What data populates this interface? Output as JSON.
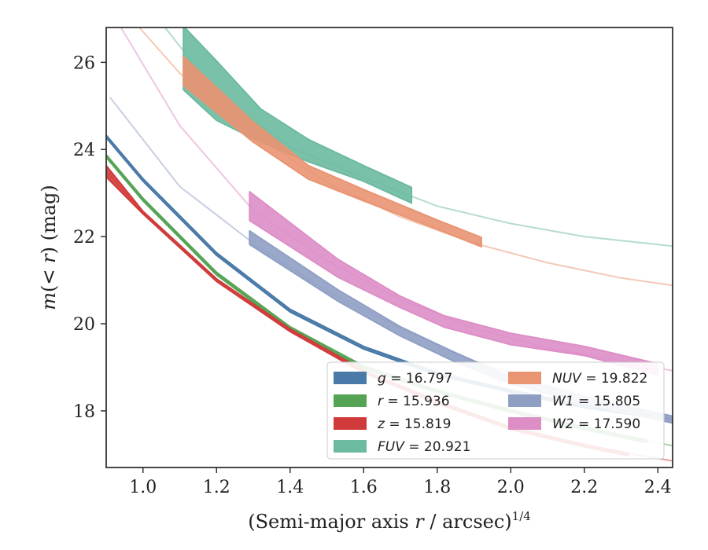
{
  "chart_data": {
    "type": "line",
    "title": "",
    "xlabel": "(Semi-major axis r / arcsec)^{1/4}",
    "xlabel_parts": {
      "main": "(Semi-major axis ",
      "var": "r",
      "rest": " / arcsec)",
      "sup": "1/4"
    },
    "ylabel": "m(<r) (mag)",
    "ylabel_parts": {
      "var": "m",
      "open": "(",
      "lt": "<",
      "r": "r",
      "close": ")",
      "unit": " (mag)"
    },
    "xlim": [
      0.9,
      2.44
    ],
    "ylim": [
      26.8,
      16.7
    ],
    "y_inverted": true,
    "grid": false,
    "x_ticks": [
      1.0,
      1.2,
      1.4,
      1.6,
      1.8,
      2.0,
      2.2,
      2.4
    ],
    "x_tick_labels": [
      "1.0",
      "1.2",
      "1.4",
      "1.6",
      "1.8",
      "2.0",
      "2.2",
      "2.4"
    ],
    "y_ticks": [
      18,
      20,
      22,
      24,
      26
    ],
    "y_tick_labels": [
      "18",
      "20",
      "22",
      "24",
      "26"
    ],
    "legend": {
      "placement": "lower-right",
      "columns": 2
    },
    "colors": {
      "g": "#4a7aa8",
      "r": "#55a455",
      "z": "#d03a3a",
      "FUV": "#6cbaa0",
      "NUV": "#e99472",
      "W1": "#8f9fc4",
      "W2": "#dd8ec6"
    },
    "series": [
      {
        "key": "g",
        "name": "g = 16.797",
        "legend_var": "g",
        "legend_value": "16.797",
        "model": [
          [
            0.9,
            24.3
          ],
          [
            1.0,
            23.3
          ],
          [
            1.2,
            21.6
          ],
          [
            1.4,
            20.3
          ],
          [
            1.6,
            19.45
          ],
          [
            1.8,
            18.85
          ],
          [
            2.0,
            18.45
          ],
          [
            2.2,
            18.1
          ],
          [
            2.44,
            17.8
          ]
        ],
        "data": [
          [
            0.9,
            24.3,
            24.3
          ],
          [
            1.0,
            23.3,
            23.3
          ],
          [
            1.2,
            21.6,
            21.6
          ],
          [
            1.4,
            20.3,
            20.3
          ],
          [
            1.6,
            19.45,
            19.45
          ],
          [
            1.8,
            18.85,
            18.85
          ],
          [
            2.0,
            18.45,
            18.45
          ],
          [
            2.2,
            18.1,
            18.1
          ],
          [
            2.38,
            17.88,
            17.88
          ]
        ]
      },
      {
        "key": "r",
        "name": "r = 15.936",
        "legend_var": "r",
        "legend_value": "15.936",
        "model": [
          [
            0.9,
            23.85
          ],
          [
            1.0,
            22.85
          ],
          [
            1.2,
            21.15
          ],
          [
            1.4,
            19.9
          ],
          [
            1.6,
            19.0
          ],
          [
            1.8,
            18.45
          ],
          [
            2.0,
            18.0
          ],
          [
            2.2,
            17.6
          ],
          [
            2.44,
            17.2
          ]
        ],
        "data": [
          [
            0.9,
            23.85,
            23.85
          ],
          [
            1.0,
            22.85,
            22.85
          ],
          [
            1.2,
            21.15,
            21.15
          ],
          [
            1.4,
            19.9,
            19.9
          ],
          [
            1.6,
            19.0,
            19.0
          ],
          [
            1.8,
            18.45,
            18.45
          ],
          [
            2.0,
            18.0,
            18.0
          ],
          [
            2.2,
            17.6,
            17.6
          ],
          [
            2.37,
            17.3,
            17.3
          ]
        ]
      },
      {
        "key": "z",
        "name": "z = 15.819",
        "legend_var": "z",
        "legend_value": "15.819",
        "model": [
          [
            0.9,
            23.5
          ],
          [
            1.0,
            22.55
          ],
          [
            1.2,
            21.0
          ],
          [
            1.4,
            19.85
          ],
          [
            1.6,
            18.9
          ],
          [
            1.8,
            18.2
          ],
          [
            2.0,
            17.6
          ],
          [
            2.2,
            17.2
          ],
          [
            2.44,
            16.85
          ]
        ],
        "data": [
          [
            0.9,
            23.6,
            23.4
          ],
          [
            1.0,
            22.55,
            22.55
          ],
          [
            1.2,
            21.0,
            21.0
          ],
          [
            1.4,
            19.85,
            19.85
          ],
          [
            1.6,
            18.9,
            18.9
          ],
          [
            1.8,
            18.2,
            18.2
          ],
          [
            2.0,
            17.6,
            17.6
          ],
          [
            2.2,
            17.2,
            17.2
          ],
          [
            2.32,
            17.0,
            17.0
          ]
        ]
      },
      {
        "key": "FUV",
        "name": "FUV = 20.921",
        "legend_var": "FUV",
        "legend_value": "20.921",
        "model": [
          [
            1.06,
            26.8
          ],
          [
            1.2,
            25.3
          ],
          [
            1.4,
            24.05
          ],
          [
            1.6,
            23.35
          ],
          [
            1.8,
            22.7
          ],
          [
            2.0,
            22.3
          ],
          [
            2.2,
            22.0
          ],
          [
            2.44,
            21.78
          ]
        ],
        "data": [
          [
            1.11,
            25.4,
            26.8
          ],
          [
            1.2,
            24.7,
            26.0
          ],
          [
            1.32,
            24.2,
            24.9
          ],
          [
            1.45,
            23.75,
            24.2
          ],
          [
            1.6,
            23.3,
            23.6
          ],
          [
            1.73,
            22.8,
            23.1
          ]
        ]
      },
      {
        "key": "NUV",
        "name": "NUV = 19.822",
        "legend_var": "NUV",
        "legend_value": "19.822",
        "model": [
          [
            0.99,
            26.8
          ],
          [
            1.1,
            25.75
          ],
          [
            1.3,
            24.35
          ],
          [
            1.5,
            23.25
          ],
          [
            1.7,
            22.45
          ],
          [
            1.9,
            21.85
          ],
          [
            2.1,
            21.4
          ],
          [
            2.3,
            21.05
          ],
          [
            2.44,
            20.88
          ]
        ],
        "data": [
          [
            1.11,
            25.5,
            26.1
          ],
          [
            1.3,
            24.2,
            24.6
          ],
          [
            1.45,
            23.35,
            23.6
          ],
          [
            1.6,
            22.85,
            23.05
          ],
          [
            1.8,
            22.2,
            22.35
          ],
          [
            1.92,
            21.8,
            21.95
          ]
        ]
      },
      {
        "key": "W1",
        "name": "W1 = 15.805",
        "legend_var": "W1",
        "legend_value": "15.805",
        "model": [
          [
            0.91,
            25.2
          ],
          [
            1.1,
            23.15
          ],
          [
            1.3,
            21.85
          ],
          [
            1.5,
            20.75
          ],
          [
            1.7,
            19.9
          ],
          [
            1.9,
            19.15
          ],
          [
            2.1,
            18.6
          ],
          [
            2.3,
            18.1
          ],
          [
            2.44,
            17.8
          ]
        ],
        "data": [
          [
            1.29,
            21.85,
            22.1
          ],
          [
            1.53,
            20.55,
            20.75
          ],
          [
            1.7,
            19.75,
            19.9
          ],
          [
            1.85,
            19.15,
            19.3
          ],
          [
            2.0,
            18.65,
            18.75
          ],
          [
            2.2,
            18.2,
            18.3
          ],
          [
            2.44,
            17.75,
            17.85
          ]
        ]
      },
      {
        "key": "W2",
        "name": "W2 = 17.590",
        "legend_var": "W2",
        "legend_value": "17.590",
        "model": [
          [
            0.94,
            26.8
          ],
          [
            1.1,
            24.55
          ],
          [
            1.3,
            22.6
          ],
          [
            1.5,
            21.45
          ],
          [
            1.7,
            20.55
          ],
          [
            1.9,
            19.9
          ],
          [
            2.1,
            19.45
          ],
          [
            2.3,
            19.15
          ],
          [
            2.44,
            18.92
          ]
        ],
        "data": [
          [
            1.29,
            22.4,
            23.0
          ],
          [
            1.53,
            21.1,
            21.45
          ],
          [
            1.7,
            20.4,
            20.6
          ],
          [
            1.82,
            19.95,
            20.15
          ],
          [
            2.0,
            19.55,
            19.75
          ],
          [
            2.2,
            19.3,
            19.45
          ],
          [
            2.4,
            18.85,
            19.05
          ]
        ]
      }
    ]
  }
}
